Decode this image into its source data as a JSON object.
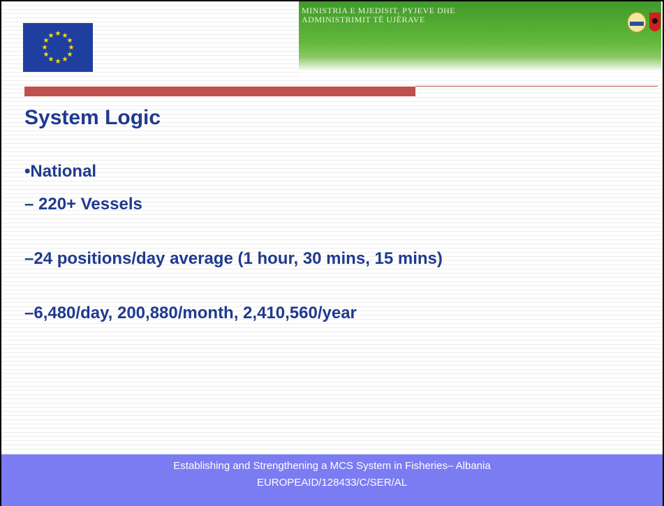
{
  "header": {
    "ministry": [
      "MINISTRIA E MJEDISIT, PYJEVE DHE",
      "ADMINISTRIMIT TË UJËRAVE"
    ]
  },
  "title": "System Logic",
  "bullets": [
    "•National",
    "– 220+ Vessels",
    "–24 positions/day average (1 hour, 30 mins, 15 mins)",
    "–6,480/day, 200,880/month, 2,410,560/year"
  ],
  "footer": [
    "Establishing and Strengthening a MCS System in Fisheries– Albania",
    "EUROPEAID/128433/C/SER/AL"
  ]
}
